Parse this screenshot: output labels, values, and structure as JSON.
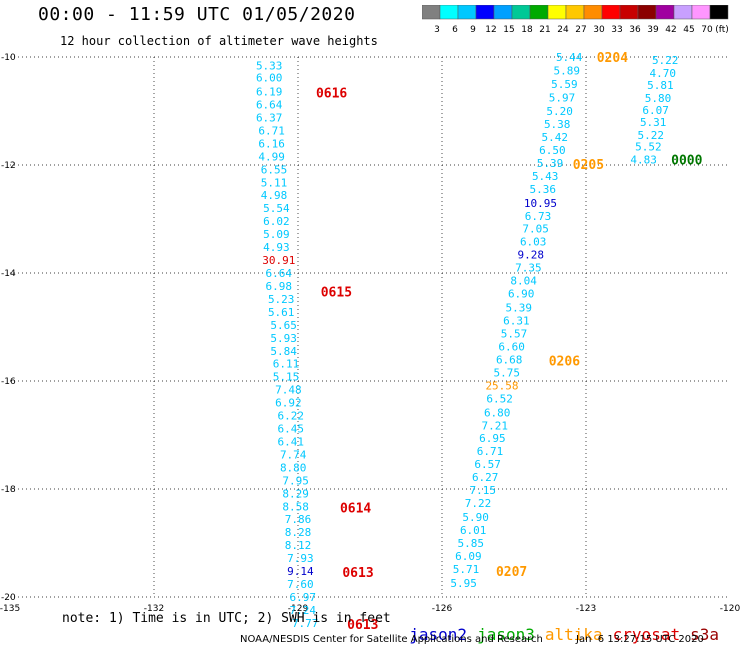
{
  "title": "00:00 - 11:59 UTC 01/05/2020",
  "subtitle": "12 hour collection of altimeter wave heights",
  "note": "note: 1) Time is in UTC; 2) SWH is in feet",
  "satellites": [
    {
      "name": "jason2",
      "color": "#0000cc"
    },
    {
      "name": "jason3",
      "color": "#00aa00"
    },
    {
      "name": "altika",
      "color": "#ff9900"
    },
    {
      "name": "cryosat",
      "color": "#dd0000"
    },
    {
      "name": "s3a",
      "color": "#990000"
    }
  ],
  "credit": "NOAA/NESDIS Center for Satellite Applications and Research",
  "timestamp": "Jan  6 13:27:15 UTC 2020",
  "color_legend": {
    "labels": [
      "3",
      "6",
      "9",
      "12",
      "15",
      "18",
      "21",
      "24",
      "27",
      "30",
      "33",
      "36",
      "39",
      "42",
      "45",
      "70",
      "(ft)"
    ],
    "colors": [
      "#808080",
      "#00ffff",
      "#00c8ff",
      "#0000ff",
      "#00a0ff",
      "#00c896",
      "#00aa00",
      "#ffff00",
      "#ffc800",
      "#ff8c00",
      "#ff0000",
      "#c80000",
      "#8b0000",
      "#a000a0",
      "#c8a0ff",
      "#ff96ff",
      "#000000"
    ]
  },
  "chart_data": {
    "type": "scatter",
    "xlim": [
      -135,
      -120
    ],
    "ylim": [
      -20,
      -10
    ],
    "xticks": [
      "-135",
      "-132",
      "-129",
      "-126",
      "-123",
      "-120"
    ],
    "yticks": [
      "-10",
      "-12",
      "-14",
      "-16",
      "-18",
      "-20"
    ],
    "grid": true,
    "tracks": [
      {
        "color": "#00c8ff",
        "points": [
          {
            "x": -129.6,
            "y": -10.16,
            "v": "5.33"
          },
          {
            "x": -129.6,
            "y": -10.38,
            "v": "6.00"
          },
          {
            "x": -129.6,
            "y": -10.64,
            "v": "6.19"
          },
          {
            "x": -129.6,
            "y": -10.88,
            "v": "6.64"
          },
          {
            "x": -129.6,
            "y": -11.12,
            "v": "6.37"
          },
          {
            "x": -129.55,
            "y": -11.36,
            "v": "6.71"
          },
          {
            "x": -129.55,
            "y": -11.6,
            "v": "6.16"
          },
          {
            "x": -129.55,
            "y": -11.84,
            "v": "4.99"
          },
          {
            "x": -129.5,
            "y": -12.08,
            "v": "6.55"
          },
          {
            "x": -129.5,
            "y": -12.32,
            "v": "5.11"
          },
          {
            "x": -129.5,
            "y": -12.56,
            "v": "4.98"
          },
          {
            "x": -129.45,
            "y": -12.8,
            "v": "5.54"
          },
          {
            "x": -129.45,
            "y": -13.04,
            "v": "6.02"
          },
          {
            "x": -129.45,
            "y": -13.28,
            "v": "5.09"
          },
          {
            "x": -129.45,
            "y": -13.52,
            "v": "4.93"
          },
          {
            "x": -129.4,
            "y": -13.76,
            "v": "30.91",
            "c": "#dd0000"
          },
          {
            "x": -129.4,
            "y": -14.0,
            "v": "6.64"
          },
          {
            "x": -129.4,
            "y": -14.24,
            "v": "6.98"
          },
          {
            "x": -129.35,
            "y": -14.48,
            "v": "5.23"
          },
          {
            "x": -129.35,
            "y": -14.72,
            "v": "5.61"
          },
          {
            "x": -129.3,
            "y": -14.96,
            "v": "5.65"
          },
          {
            "x": -129.3,
            "y": -15.2,
            "v": "5.93"
          },
          {
            "x": -129.3,
            "y": -15.44,
            "v": "5.84"
          },
          {
            "x": -129.25,
            "y": -15.68,
            "v": "6.11"
          },
          {
            "x": -129.25,
            "y": -15.92,
            "v": "5.15"
          },
          {
            "x": -129.2,
            "y": -16.16,
            "v": "7.48"
          },
          {
            "x": -129.2,
            "y": -16.4,
            "v": "6.92"
          },
          {
            "x": -129.15,
            "y": -16.64,
            "v": "6.22"
          },
          {
            "x": -129.15,
            "y": -16.88,
            "v": "6.45"
          },
          {
            "x": -129.15,
            "y": -17.12,
            "v": "6.41"
          },
          {
            "x": -129.1,
            "y": -17.36,
            "v": "7.74"
          },
          {
            "x": -129.1,
            "y": -17.6,
            "v": "8.80"
          },
          {
            "x": -129.05,
            "y": -17.84,
            "v": "7.95"
          },
          {
            "x": -129.05,
            "y": -18.08,
            "v": "8.29"
          },
          {
            "x": -129.05,
            "y": -18.32,
            "v": "8.58"
          },
          {
            "x": -129.0,
            "y": -18.56,
            "v": "7.86"
          },
          {
            "x": -129.0,
            "y": -18.8,
            "v": "8.28"
          },
          {
            "x": -129.0,
            "y": -19.04,
            "v": "8.12"
          },
          {
            "x": -128.95,
            "y": -19.28,
            "v": "7.93"
          },
          {
            "x": -128.95,
            "y": -19.52,
            "v": "9.14",
            "c": "#0000cc"
          },
          {
            "x": -128.95,
            "y": -19.76,
            "v": "7.60"
          },
          {
            "x": -128.9,
            "y": -20.0,
            "v": "6.97"
          },
          {
            "x": -128.9,
            "y": -20.24,
            "v": "7.24"
          },
          {
            "x": -128.85,
            "y": -20.48,
            "v": "7.77"
          }
        ],
        "time_labels": [
          {
            "x": -128.3,
            "y": -10.66,
            "v": "0616",
            "c": "#dd0000"
          },
          {
            "x": -128.2,
            "y": -14.34,
            "v": "0615",
            "c": "#dd0000"
          },
          {
            "x": -127.8,
            "y": -18.34,
            "v": "0614",
            "c": "#dd0000"
          },
          {
            "x": -127.75,
            "y": -19.54,
            "v": "0613",
            "c": "#dd0000"
          },
          {
            "x": -127.65,
            "y": -20.5,
            "v": "0613",
            "c": "#dd0000"
          }
        ]
      },
      {
        "color": "#00c8ff",
        "points": [
          {
            "x": -123.35,
            "y": -10.0,
            "v": "5.44"
          },
          {
            "x": -123.4,
            "y": -10.25,
            "v": "5.89"
          },
          {
            "x": -123.45,
            "y": -10.5,
            "v": "5.59"
          },
          {
            "x": -123.5,
            "y": -10.75,
            "v": "5.97"
          },
          {
            "x": -123.55,
            "y": -11.0,
            "v": "5.20"
          },
          {
            "x": -123.6,
            "y": -11.24,
            "v": "5.38"
          },
          {
            "x": -123.65,
            "y": -11.48,
            "v": "5.42"
          },
          {
            "x": -123.7,
            "y": -11.72,
            "v": "6.50"
          },
          {
            "x": -123.75,
            "y": -11.96,
            "v": "5.39"
          },
          {
            "x": -123.85,
            "y": -12.2,
            "v": "5.43"
          },
          {
            "x": -123.9,
            "y": -12.44,
            "v": "5.36"
          },
          {
            "x": -123.95,
            "y": -12.7,
            "v": "10.95",
            "c": "#0000cc"
          },
          {
            "x": -124.0,
            "y": -12.94,
            "v": "6.73"
          },
          {
            "x": -124.05,
            "y": -13.18,
            "v": "7.05"
          },
          {
            "x": -124.1,
            "y": -13.42,
            "v": "6.03"
          },
          {
            "x": -124.15,
            "y": -13.66,
            "v": "9.28",
            "c": "#0000cc"
          },
          {
            "x": -124.2,
            "y": -13.9,
            "v": "7.35"
          },
          {
            "x": -124.3,
            "y": -14.14,
            "v": "8.04"
          },
          {
            "x": -124.35,
            "y": -14.38,
            "v": "6.90"
          },
          {
            "x": -124.4,
            "y": -14.64,
            "v": "5.39"
          },
          {
            "x": -124.45,
            "y": -14.88,
            "v": "6.31"
          },
          {
            "x": -124.5,
            "y": -15.12,
            "v": "5.57"
          },
          {
            "x": -124.55,
            "y": -15.36,
            "v": "6.60"
          },
          {
            "x": -124.6,
            "y": -15.6,
            "v": "6.68"
          },
          {
            "x": -124.65,
            "y": -15.84,
            "v": "5.75"
          },
          {
            "x": -124.75,
            "y": -16.08,
            "v": "25.58",
            "c": "#ff9900"
          },
          {
            "x": -124.8,
            "y": -16.32,
            "v": "6.52"
          },
          {
            "x": -124.85,
            "y": -16.58,
            "v": "6.80"
          },
          {
            "x": -124.9,
            "y": -16.82,
            "v": "7.21"
          },
          {
            "x": -124.95,
            "y": -17.06,
            "v": "6.95"
          },
          {
            "x": -125.0,
            "y": -17.3,
            "v": "6.71"
          },
          {
            "x": -125.05,
            "y": -17.54,
            "v": "6.57"
          },
          {
            "x": -125.1,
            "y": -17.78,
            "v": "6.27"
          },
          {
            "x": -125.15,
            "y": -18.02,
            "v": "7.15"
          },
          {
            "x": -125.25,
            "y": -18.26,
            "v": "7.22"
          },
          {
            "x": -125.3,
            "y": -18.52,
            "v": "5.90"
          },
          {
            "x": -125.35,
            "y": -18.76,
            "v": "6.01"
          },
          {
            "x": -125.4,
            "y": -19.0,
            "v": "5.85"
          },
          {
            "x": -125.45,
            "y": -19.24,
            "v": "6.09"
          },
          {
            "x": -125.5,
            "y": -19.48,
            "v": "5.71"
          },
          {
            "x": -125.55,
            "y": -19.74,
            "v": "5.95"
          }
        ],
        "time_labels": [
          {
            "x": -122.45,
            "y": -10.0,
            "v": "0204",
            "c": "#ff9900"
          },
          {
            "x": -122.95,
            "y": -11.98,
            "v": "0205",
            "c": "#ff9900"
          },
          {
            "x": -123.45,
            "y": -15.62,
            "v": "0206",
            "c": "#ff9900"
          },
          {
            "x": -124.55,
            "y": -19.52,
            "v": "0207",
            "c": "#ff9900"
          }
        ]
      },
      {
        "color": "#00c8ff",
        "points": [
          {
            "x": -121.35,
            "y": -10.06,
            "v": "5.22"
          },
          {
            "x": -121.4,
            "y": -10.3,
            "v": "4.70"
          },
          {
            "x": -121.45,
            "y": -10.52,
            "v": "5.81"
          },
          {
            "x": -121.5,
            "y": -10.76,
            "v": "5.80"
          },
          {
            "x": -121.55,
            "y": -10.98,
            "v": "6.07"
          },
          {
            "x": -121.6,
            "y": -11.2,
            "v": "5.31"
          },
          {
            "x": -121.65,
            "y": -11.44,
            "v": "5.22"
          },
          {
            "x": -121.7,
            "y": -11.66,
            "v": "5.52"
          },
          {
            "x": -121.8,
            "y": -11.9,
            "v": "4.83"
          }
        ],
        "time_labels": [
          {
            "x": -120.9,
            "y": -11.9,
            "v": "0000",
            "c": "#007700"
          }
        ]
      }
    ]
  }
}
